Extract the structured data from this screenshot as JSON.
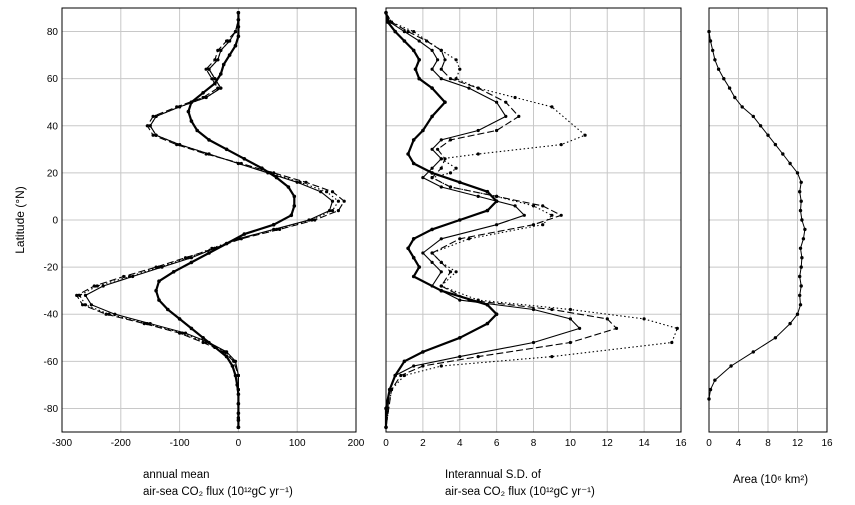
{
  "chart_data": {
    "type": "line",
    "ylabel": "Latitude (°N)",
    "ylim": [
      -90,
      90
    ],
    "yticks": [
      -80,
      -60,
      -40,
      -20,
      0,
      20,
      40,
      60,
      80
    ],
    "grid": true,
    "panels": [
      {
        "name": "annual-mean",
        "xlabel_line1": "annual mean",
        "xlabel_line2": "air-sea CO₂ flux (10¹²gC yr⁻¹)",
        "xlim": [
          -300,
          200
        ],
        "xticks": [
          -300,
          -200,
          -100,
          0,
          100,
          200
        ],
        "series": [
          {
            "style": "thick",
            "x": [
              0,
              0,
              0,
              0,
              -5,
              -15,
              -25,
              -30,
              -40,
              -60,
              -80,
              -85,
              -80,
              -70,
              -50,
              -20,
              10,
              40,
              65,
              85,
              95,
              95,
              90,
              60,
              10,
              -20,
              -50,
              -80,
              -110,
              -135,
              -140,
              -135,
              -120,
              -100,
              -80,
              -60,
              -40,
              -20,
              -10,
              -5,
              -2,
              0,
              0,
              0,
              0,
              0,
              0
            ],
            "y": [
              88,
              85,
              82,
              78,
              74,
              70,
              66,
              62,
              58,
              54,
              50,
              46,
              42,
              38,
              34,
              30,
              26,
              22,
              18,
              14,
              10,
              6,
              2,
              -2,
              -6,
              -10,
              -14,
              -18,
              -22,
              -26,
              -30,
              -34,
              -38,
              -42,
              -46,
              -50,
              -54,
              -58,
              -62,
              -66,
              -70,
              -74,
              -78,
              -82,
              -85,
              -88,
              -88
            ]
          },
          {
            "style": "thin",
            "x": [
              0,
              0,
              -5,
              -15,
              -30,
              -35,
              -50,
              -40,
              -30,
              -55,
              -100,
              -140,
              -150,
              -140,
              -100,
              -50,
              0,
              50,
              100,
              140,
              160,
              155,
              120,
              60,
              0,
              -40,
              -80,
              -130,
              -180,
              -230,
              -260,
              -250,
              -210,
              -150,
              -90,
              -50,
              -20,
              -5,
              0,
              0,
              0,
              0,
              0
            ],
            "y": [
              88,
              85,
              80,
              76,
              72,
              68,
              64,
              60,
              56,
              52,
              48,
              44,
              40,
              36,
              32,
              28,
              24,
              20,
              16,
              12,
              8,
              4,
              0,
              -4,
              -8,
              -12,
              -16,
              -20,
              -24,
              -28,
              -32,
              -36,
              -40,
              -44,
              -48,
              -52,
              -56,
              -60,
              -66,
              -72,
              -78,
              -84,
              -88
            ]
          },
          {
            "style": "dashed",
            "x": [
              0,
              0,
              -5,
              -20,
              -35,
              -40,
              -55,
              -45,
              -35,
              -60,
              -105,
              -145,
              -155,
              -145,
              -105,
              -55,
              5,
              60,
              115,
              160,
              180,
              170,
              130,
              70,
              5,
              -40,
              -90,
              -140,
              -195,
              -245,
              -275,
              -265,
              -225,
              -160,
              -100,
              -60,
              -25,
              -8,
              0,
              0,
              0,
              0,
              0
            ],
            "y": [
              88,
              85,
              80,
              76,
              72,
              68,
              64,
              60,
              56,
              52,
              48,
              44,
              40,
              36,
              32,
              28,
              24,
              20,
              16,
              12,
              8,
              4,
              0,
              -4,
              -8,
              -12,
              -16,
              -20,
              -24,
              -28,
              -32,
              -36,
              -40,
              -44,
              -48,
              -52,
              -56,
              -60,
              -66,
              -72,
              -78,
              -84,
              -88
            ]
          },
          {
            "style": "dotted",
            "x": [
              0,
              0,
              -5,
              -15,
              -30,
              -35,
              -50,
              -40,
              -30,
              -55,
              -100,
              -140,
              -150,
              -140,
              -100,
              -50,
              0,
              55,
              105,
              150,
              170,
              160,
              125,
              65,
              0,
              -45,
              -85,
              -135,
              -185,
              -240,
              -270,
              -260,
              -220,
              -155,
              -95,
              -55,
              -22,
              -6,
              0,
              0,
              0,
              0,
              0
            ],
            "y": [
              88,
              85,
              80,
              76,
              72,
              68,
              64,
              60,
              56,
              52,
              48,
              44,
              40,
              36,
              32,
              28,
              24,
              20,
              16,
              12,
              8,
              4,
              0,
              -4,
              -8,
              -12,
              -16,
              -20,
              -24,
              -28,
              -32,
              -36,
              -40,
              -44,
              -48,
              -52,
              -56,
              -60,
              -66,
              -72,
              -78,
              -84,
              -88
            ]
          }
        ]
      },
      {
        "name": "interannual-sd",
        "xlabel_line1": "Interannual S.D. of",
        "xlabel_line2": "air-sea CO₂ flux (10¹²gC yr⁻¹)",
        "xlim": [
          0,
          16
        ],
        "xticks": [
          0,
          2,
          4,
          6,
          8,
          10,
          12,
          14,
          16
        ],
        "series": [
          {
            "style": "thick",
            "x": [
              0,
              0.1,
              0.5,
              1,
              1.5,
              1.8,
              1.6,
              1.8,
              2.5,
              3.2,
              2.5,
              2,
              1.5,
              1.2,
              1.5,
              2.5,
              4,
              5.5,
              6,
              5.5,
              4,
              2.5,
              1.5,
              1.2,
              1.5,
              1.8,
              1.5,
              3,
              5.5,
              6,
              5.5,
              4,
              2,
              1,
              0.5,
              0.2,
              0,
              0
            ],
            "y": [
              88,
              84,
              80,
              76,
              72,
              68,
              64,
              60,
              56,
              50,
              44,
              38,
              34,
              28,
              24,
              20,
              16,
              12,
              8,
              4,
              0,
              -4,
              -8,
              -12,
              -16,
              -20,
              -24,
              -30,
              -36,
              -40,
              -44,
              -50,
              -56,
              -60,
              -66,
              -72,
              -80,
              -88
            ]
          },
          {
            "style": "thin",
            "x": [
              0,
              0.2,
              1,
              1.8,
              2.5,
              2.8,
              2.5,
              3,
              4.5,
              6,
              6.5,
              5,
              3,
              2.5,
              3,
              2.5,
              2,
              3,
              5,
              7,
              7.5,
              6,
              3,
              2,
              2.5,
              3,
              2.5,
              4,
              8,
              10,
              10.5,
              8,
              4,
              1.5,
              0.5,
              0.2,
              0
            ],
            "y": [
              88,
              84,
              80,
              76,
              72,
              68,
              64,
              60,
              56,
              50,
              44,
              38,
              34,
              30,
              26,
              22,
              18,
              14,
              10,
              6,
              2,
              -2,
              -8,
              -14,
              -18,
              -22,
              -28,
              -34,
              -38,
              -42,
              -46,
              -52,
              -58,
              -62,
              -66,
              -72,
              -88
            ]
          },
          {
            "style": "dashed",
            "x": [
              0,
              0.3,
              1.2,
              2.2,
              3,
              3.2,
              3,
              3.5,
              5,
              6.5,
              7.2,
              6,
              3.5,
              2.8,
              3.2,
              3,
              2.5,
              3.5,
              6,
              8.5,
              9.5,
              8,
              4,
              2.5,
              3,
              3.5,
              3,
              4.5,
              9,
              12,
              12.5,
              10,
              5,
              2,
              0.8,
              0.3,
              0
            ],
            "y": [
              88,
              84,
              80,
              76,
              72,
              68,
              64,
              60,
              56,
              50,
              44,
              38,
              34,
              30,
              26,
              22,
              18,
              14,
              10,
              6,
              2,
              -2,
              -8,
              -14,
              -18,
              -22,
              -28,
              -34,
              -38,
              -42,
              -46,
              -52,
              -58,
              -62,
              -66,
              -72,
              -88
            ]
          },
          {
            "style": "dotted",
            "x": [
              0,
              0.3,
              1.5,
              3,
              3.8,
              4,
              3.8,
              5,
              7,
              9,
              10.8,
              9.5,
              5,
              3,
              3.8,
              3.5,
              2.5,
              3.5,
              6,
              8,
              9,
              8.5,
              4.5,
              2.5,
              3,
              3.8,
              3,
              5,
              10,
              14,
              15.8,
              15.5,
              9,
              3,
              1,
              0.3,
              0
            ],
            "y": [
              88,
              84,
              80,
              72,
              68,
              64,
              60,
              56,
              52,
              48,
              36,
              32,
              28,
              26,
              22,
              20,
              18,
              14,
              10,
              6,
              2,
              -2,
              -8,
              -14,
              -18,
              -22,
              -28,
              -34,
              -38,
              -42,
              -46,
              -52,
              -58,
              -62,
              -66,
              -72,
              -88
            ]
          }
        ]
      },
      {
        "name": "area",
        "xlabel_line1": "Area (10⁶ km²)",
        "xlim": [
          0,
          16
        ],
        "xticks": [
          0,
          4,
          8,
          12,
          16
        ],
        "series": [
          {
            "style": "thin-dots",
            "x": [
              0,
              0.2,
              0.5,
              0.8,
              1.3,
              2,
              2.8,
              3.5,
              4.5,
              6,
              7,
              8,
              9,
              10,
              11,
              12,
              12.5,
              12.3,
              12.5,
              12.4,
              12.6,
              13,
              12.8,
              12.4,
              12.6,
              12.5,
              12.3,
              12.5,
              12.3,
              12.4,
              12,
              11,
              9,
              6,
              3,
              0.8,
              0.2,
              0
            ],
            "y": [
              80,
              76,
              72,
              68,
              64,
              60,
              56,
              52,
              48,
              44,
              40,
              36,
              32,
              28,
              24,
              20,
              16,
              12,
              8,
              4,
              0,
              -4,
              -8,
              -12,
              -16,
              -20,
              -24,
              -28,
              -32,
              -36,
              -40,
              -44,
              -50,
              -56,
              -62,
              -68,
              -72,
              -76
            ]
          }
        ]
      }
    ]
  }
}
